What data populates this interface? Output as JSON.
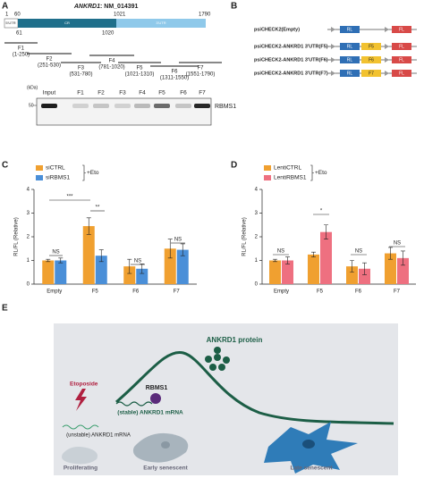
{
  "panel_labels": {
    "a": "A",
    "b": "B",
    "c": "C",
    "d": "D",
    "e": "E"
  },
  "panel_a": {
    "title_gene": "ANKRD1",
    "title_rest": ": NM_014391",
    "positions_top": [
      "1",
      "60",
      "1021",
      "1790"
    ],
    "positions_bottom": [
      "61",
      "1020"
    ],
    "regions": [
      "5'UTR",
      "CR",
      "3'UTR"
    ],
    "fragments": [
      {
        "name": "F1",
        "range": "(1-250)"
      },
      {
        "name": "F2",
        "range": "(251-530)"
      },
      {
        "name": "F3",
        "range": "(531-780)"
      },
      {
        "name": "F4",
        "range": "(781-1020)"
      },
      {
        "name": "F5",
        "range": "(1021-1310)"
      },
      {
        "name": "F6",
        "range": "(1311-1550)"
      },
      {
        "name": "F7",
        "range": "(1551-1790)"
      }
    ],
    "blot": {
      "unit": "(kDa)",
      "marker": "50",
      "protein": "RBMS1",
      "lanes": [
        "Input",
        "F1",
        "F2",
        "F3",
        "F4",
        "F5",
        "F6",
        "F7"
      ]
    }
  },
  "panel_b": {
    "constructs": [
      "psiCHECK2(Empty)",
      "psiCHECK2-ANKRD1 3'UTR(F5)",
      "psiCHECK2-ANKRD1 3'UTR(F6)",
      "psiCHECK2-ANKRD1 3'UTR(F7)"
    ],
    "rl": "RL",
    "fl": "FL",
    "inserts": [
      "F5",
      "F6",
      "F7"
    ]
  },
  "chart_data": [
    {
      "type": "bar",
      "ylabel": "RL/FL (Relative)",
      "treatment": "+Eto",
      "categories": [
        "Empty",
        "F5",
        "F6",
        "F7"
      ],
      "series": [
        {
          "name": "siCTRL",
          "color": "#f0a030",
          "values": [
            1.0,
            2.45,
            0.75,
            1.5
          ],
          "errors": [
            0.05,
            0.35,
            0.3,
            0.4
          ]
        },
        {
          "name": "siRBMS1",
          "color": "#4a8fd8",
          "values": [
            1.0,
            1.2,
            0.65,
            1.45
          ],
          "errors": [
            0.1,
            0.25,
            0.2,
            0.25
          ]
        }
      ],
      "annotations": [
        "NS",
        "***",
        "**",
        "NS",
        "NS"
      ],
      "ylim": [
        0,
        4
      ],
      "yticks": [
        0,
        1,
        2,
        3,
        4
      ]
    },
    {
      "type": "bar",
      "ylabel": "RL/FL (Relative)",
      "treatment": "+Eto",
      "categories": [
        "Empty",
        "F5",
        "F6",
        "F7"
      ],
      "series": [
        {
          "name": "LentiCTRL",
          "color": "#f0a030",
          "values": [
            1.0,
            1.25,
            0.75,
            1.3
          ],
          "errors": [
            0.05,
            0.1,
            0.25,
            0.25
          ]
        },
        {
          "name": "LentiRBMS1",
          "color": "#ee7080",
          "values": [
            1.0,
            2.2,
            0.65,
            1.1
          ],
          "errors": [
            0.15,
            0.3,
            0.25,
            0.3
          ]
        }
      ],
      "annotations": [
        "NS",
        "*",
        "NS",
        "NS"
      ],
      "ylim": [
        0,
        4
      ],
      "yticks": [
        0,
        1,
        2,
        3,
        4
      ]
    }
  ],
  "panel_e": {
    "protein": "ANKRD1 protein",
    "drug": "Etoposide",
    "binder": "RBMS1",
    "stable": "(stable) ANKRD1 mRNA",
    "unstable": "(unstable) ANKRD1 mRNA",
    "stages": [
      "Proliferating",
      "Early senescent",
      "Late senescent"
    ]
  }
}
